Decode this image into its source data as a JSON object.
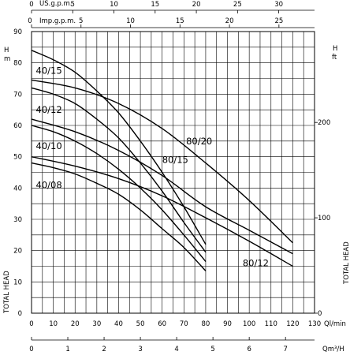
{
  "chart_data": {
    "type": "line",
    "x_axis": {
      "label": "Ql/min",
      "min": 0,
      "max": 130,
      "ticks": [
        0,
        10,
        20,
        30,
        40,
        50,
        60,
        70,
        80,
        90,
        100,
        110,
        120,
        130
      ]
    },
    "x_axis_m3h": {
      "label": "Qm³/H",
      "ticks": [
        0,
        1,
        2,
        3,
        4,
        5,
        6,
        7
      ]
    },
    "x_axis_us_gpm": {
      "label": "US.g.p.m.",
      "ticks": [
        0,
        5,
        10,
        15,
        20,
        25,
        30
      ]
    },
    "x_axis_imp_gpm": {
      "label": "Imp.g.p.m.",
      "ticks": [
        0,
        5,
        10,
        15,
        20,
        25
      ]
    },
    "y_axis_m": {
      "label": "TOTAL HEAD",
      "unit_top": "H",
      "unit": "m",
      "min": 0,
      "max": 90,
      "ticks": [
        0,
        10,
        20,
        30,
        40,
        50,
        60,
        70,
        80,
        90
      ]
    },
    "y_axis_ft": {
      "label": "TOTAL HEAD",
      "unit_top": "H",
      "unit": "ft",
      "ticks": [
        0,
        100,
        200
      ]
    },
    "series": [
      {
        "name": "40/15",
        "x": [
          0,
          10,
          20,
          30,
          40,
          50,
          60,
          70,
          80
        ],
        "y": [
          84,
          81,
          77,
          71,
          64,
          55,
          45,
          34,
          22
        ]
      },
      {
        "name": "40/12",
        "x": [
          0,
          10,
          20,
          30,
          40,
          50,
          60,
          70,
          80
        ],
        "y": [
          72,
          70,
          67,
          62,
          56,
          48,
          39,
          29,
          19.5
        ]
      },
      {
        "name": "40/10",
        "x": [
          0,
          10,
          20,
          30,
          40,
          50,
          60,
          70,
          80
        ],
        "y": [
          60,
          58,
          55,
          51,
          46,
          40,
          33,
          25,
          16.5
        ]
      },
      {
        "name": "40/08",
        "x": [
          0,
          10,
          20,
          30,
          40,
          50,
          60,
          70,
          80
        ],
        "y": [
          48,
          46.5,
          44.5,
          41.5,
          38,
          33,
          27,
          21,
          13.5
        ]
      },
      {
        "name": "80/20",
        "x": [
          0,
          20,
          40,
          60,
          80,
          100,
          120
        ],
        "y": [
          74.5,
          72,
          67,
          59,
          48,
          36,
          22.5
        ]
      },
      {
        "name": "80/15",
        "x": [
          0,
          20,
          40,
          60,
          80,
          100,
          120
        ],
        "y": [
          62,
          58,
          52,
          44,
          34,
          26.5,
          19
        ]
      },
      {
        "name": "80/12",
        "x": [
          0,
          20,
          40,
          60,
          80,
          100,
          120
        ],
        "y": [
          50,
          47,
          43,
          37.5,
          30.5,
          23,
          15
        ]
      }
    ],
    "grid": true
  }
}
